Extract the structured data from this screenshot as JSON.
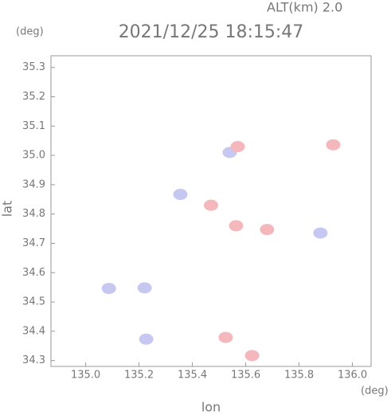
{
  "chart_data": {
    "type": "scatter",
    "title": "2021/12/25 18:15:47",
    "subtitle": "ALT(km) 2.0",
    "y_unit": "(deg)",
    "x_unit": "(deg)",
    "x_label": "lon",
    "y_label": "lat",
    "xlim": [
      134.87,
      136.07
    ],
    "ylim": [
      34.28,
      35.34
    ],
    "xticks": [
      {
        "value": 135.0,
        "label": "135.0"
      },
      135.2,
      135.4,
      135.6,
      135.8,
      {
        "value": 136.0,
        "label": "136.0"
      }
    ],
    "yticks": [
      34.3,
      34.4,
      34.5,
      34.6,
      34.7,
      34.8,
      34.9,
      {
        "value": 35.0,
        "label": "35.0"
      },
      35.1,
      35.2,
      35.3
    ],
    "series": [
      {
        "color": "#c6c8f2",
        "x": [
          135.227,
          135.087,
          135.221,
          135.355,
          135.54,
          135.88
        ],
        "values": [
          34.373,
          34.546,
          34.548,
          34.867,
          35.01,
          34.735
        ]
      },
      {
        "color": "#f4b8bc",
        "x": [
          135.525,
          135.624,
          135.928,
          135.68,
          135.564,
          135.57,
          135.47
        ],
        "values": [
          34.379,
          34.317,
          35.036,
          34.747,
          34.76,
          35.03,
          34.83
        ]
      }
    ]
  }
}
